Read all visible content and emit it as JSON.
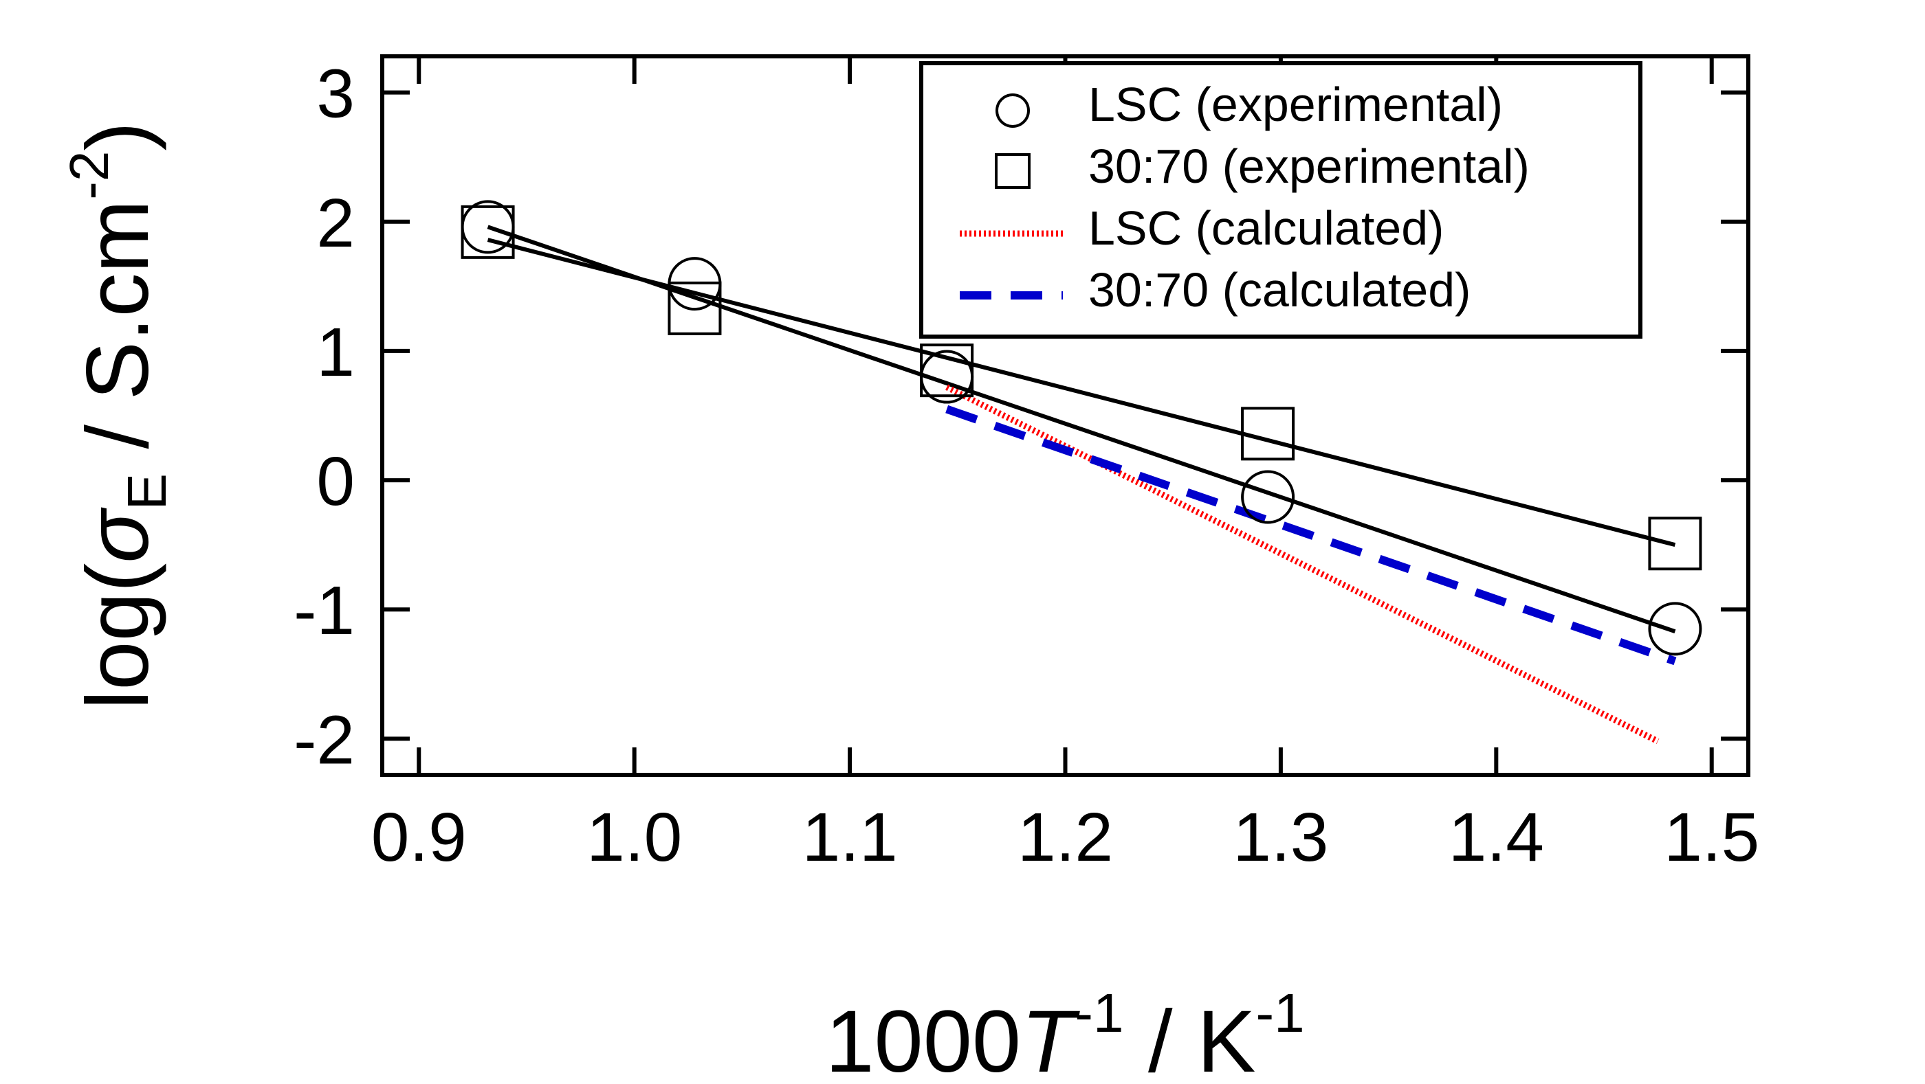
{
  "chart_data": {
    "type": "scatter",
    "xlabel": {
      "main": "1000",
      "italic": "T",
      "sup1": "-1",
      "rest": " / K",
      "sup2": "-1"
    },
    "ylabel": {
      "prefix": "log(",
      "sigma": "σ",
      "sub": "E",
      "rest": " / S.cm",
      "sup": "-2",
      "suffix": ")"
    },
    "xlim": [
      0.883,
      1.517
    ],
    "ylim": [
      -2.28,
      3.28
    ],
    "xticks": [
      {
        "v": 0.9,
        "label": "0.9"
      },
      {
        "v": 1.0,
        "label": "1.0"
      },
      {
        "v": 1.1,
        "label": "1.1"
      },
      {
        "v": 1.2,
        "label": "1.2"
      },
      {
        "v": 1.3,
        "label": "1.3"
      },
      {
        "v": 1.4,
        "label": "1.4"
      },
      {
        "v": 1.5,
        "label": "1.5"
      }
    ],
    "yticks": [
      {
        "v": 3,
        "label": "3"
      },
      {
        "v": 2,
        "label": "2"
      },
      {
        "v": 1,
        "label": "1"
      },
      {
        "v": 0,
        "label": "0"
      },
      {
        "v": -1,
        "label": "-1"
      },
      {
        "v": -2,
        "label": "-2"
      }
    ],
    "legend_position": "top-right",
    "series": [
      {
        "name": "LSC (experimental)",
        "kind": "points",
        "marker": "circle",
        "color": "#000000",
        "x": [
          0.932,
          1.028,
          1.145,
          1.294,
          1.483
        ],
        "y": [
          1.96,
          1.52,
          0.8,
          -0.13,
          -1.15
        ]
      },
      {
        "name": "30:70 (experimental)",
        "kind": "points",
        "marker": "square",
        "color": "#000000",
        "x": [
          0.932,
          1.028,
          1.145,
          1.294,
          1.483
        ],
        "y": [
          1.92,
          1.33,
          0.85,
          0.36,
          -0.49
        ]
      },
      {
        "name": "LSC (calculated)",
        "kind": "line",
        "style": "dotted",
        "color": "#ff0000",
        "x": [
          1.145,
          1.475
        ],
        "y": [
          0.72,
          -2.02
        ]
      },
      {
        "name": "30:70 (calculated)",
        "kind": "line",
        "style": "dashed",
        "color": "#0000cc",
        "x": [
          1.145,
          1.483
        ],
        "y": [
          0.55,
          -1.4
        ]
      }
    ],
    "fits": [
      {
        "x": [
          0.932,
          1.483
        ],
        "y": [
          1.96,
          -1.17
        ],
        "color": "#000000"
      },
      {
        "x": [
          0.932,
          1.483
        ],
        "y": [
          1.86,
          -0.5
        ],
        "color": "#000000"
      }
    ]
  }
}
